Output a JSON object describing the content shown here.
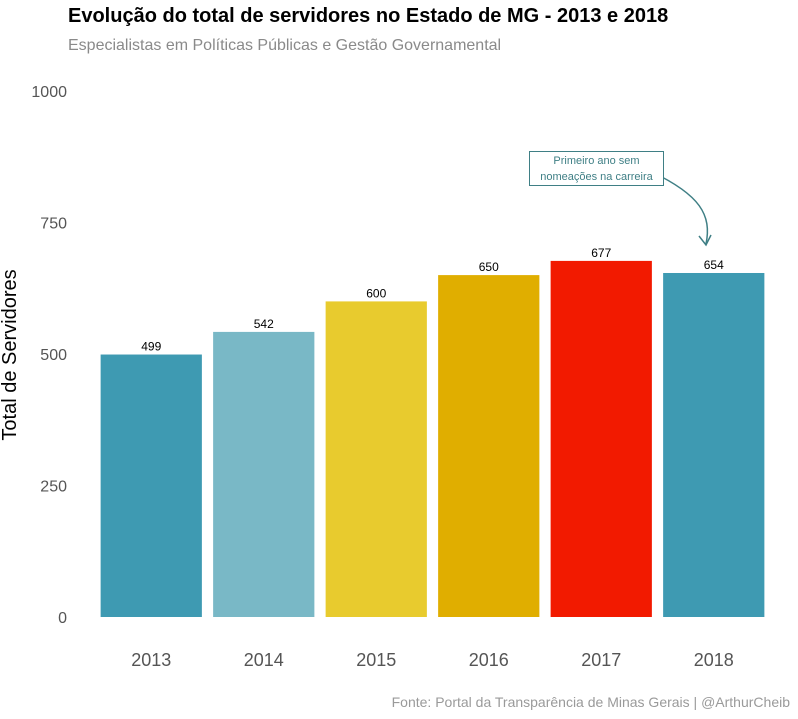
{
  "chart_data": {
    "type": "bar",
    "title": "Evolução do total de servidores no Estado de MG - 2013 e 2018",
    "subtitle": "Especialistas em Políticas Públicas e Gestão Governamental",
    "caption": "Fonte: Portal da Transparência de Minas Gerais | @ArthurCheib",
    "xlabel": "",
    "ylabel": "Total de Servidores",
    "categories": [
      "2013",
      "2014",
      "2015",
      "2016",
      "2017",
      "2018"
    ],
    "values": [
      499,
      542,
      600,
      650,
      677,
      654
    ],
    "data_labels": [
      "499",
      "542",
      "600",
      "650",
      "677",
      "654"
    ],
    "colors": [
      "#3e9ab2",
      "#79b8c6",
      "#e8cb2e",
      "#e0ae00",
      "#f21a00",
      "#3e9ab2"
    ],
    "ylim": [
      0,
      1000
    ],
    "yticks": [
      0,
      250,
      500,
      750,
      1000
    ],
    "grid": false,
    "annotation": {
      "text": "Primeiro ano sem nomeações na carreira",
      "target_category": "2018",
      "color": "#3f7f85"
    }
  }
}
